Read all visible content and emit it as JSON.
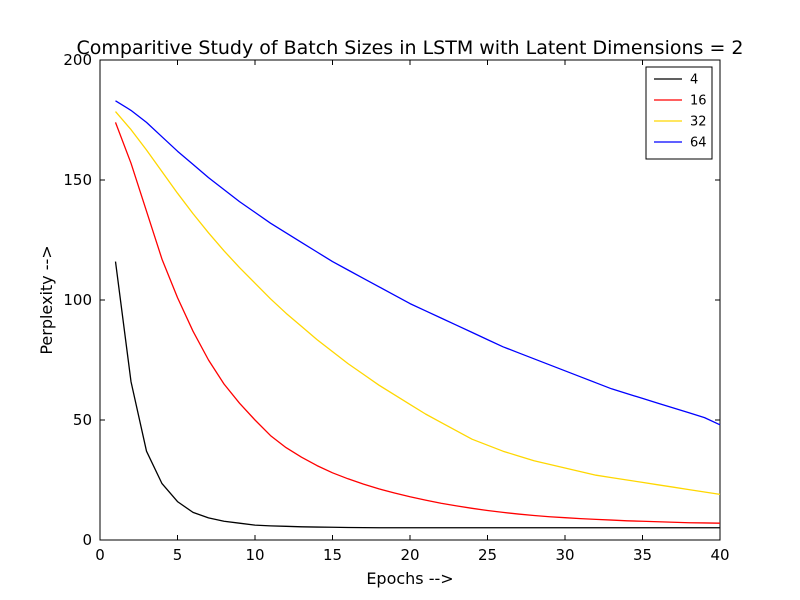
{
  "chart_data": {
    "type": "line",
    "title": "Comparitive Study of Batch Sizes in LSTM with Latent Dimensions = 2",
    "xlabel": "Epochs -->",
    "ylabel": "Perplexity -->",
    "xlim": [
      0,
      40
    ],
    "ylim": [
      0,
      200
    ],
    "xticks": [
      0,
      5,
      10,
      15,
      20,
      25,
      30,
      35,
      40
    ],
    "yticks": [
      0,
      50,
      100,
      150,
      200
    ],
    "grid": false,
    "legend_position": "top-right",
    "x": [
      1,
      2,
      3,
      4,
      5,
      6,
      7,
      8,
      9,
      10,
      11,
      12,
      13,
      14,
      15,
      16,
      17,
      18,
      19,
      20,
      21,
      22,
      23,
      24,
      25,
      26,
      27,
      28,
      29,
      30,
      31,
      32,
      33,
      34,
      35,
      36,
      37,
      38,
      39,
      40
    ],
    "series": [
      {
        "name": "4",
        "color": "#000000",
        "values": [
          116,
          66,
          37,
          23.5,
          16,
          11.5,
          9.2,
          7.8,
          7,
          6.2,
          5.9,
          5.7,
          5.5,
          5.4,
          5.3,
          5.2,
          5.15,
          5.1,
          5.1,
          5.1,
          5.1,
          5.1,
          5.1,
          5.1,
          5.1,
          5.1,
          5.1,
          5.1,
          5.1,
          5.1,
          5.1,
          5.1,
          5.1,
          5.1,
          5.1,
          5.1,
          5.1,
          5.1,
          5.1,
          5.1
        ]
      },
      {
        "name": "16",
        "color": "#ff0000",
        "values": [
          174,
          157,
          137,
          117,
          101,
          87,
          75,
          65,
          57,
          50,
          43.5,
          38.5,
          34.5,
          31,
          28,
          25.5,
          23.3,
          21.3,
          19.6,
          18,
          16.6,
          15.3,
          14.2,
          13.2,
          12.3,
          11.5,
          10.8,
          10.2,
          9.7,
          9.3,
          8.9,
          8.6,
          8.3,
          8.0,
          7.8,
          7.6,
          7.4,
          7.2,
          7.1,
          7.0
        ]
      },
      {
        "name": "32",
        "color": "#ffd700",
        "values": [
          178.5,
          171,
          162.5,
          153.5,
          144.5,
          136,
          128,
          120.5,
          113.5,
          107,
          100.5,
          94.5,
          89,
          83.5,
          78.5,
          73.5,
          69,
          64.5,
          60.5,
          56.5,
          52.5,
          49,
          45.5,
          42,
          39.5,
          37,
          35,
          33,
          31.5,
          30,
          28.5,
          27,
          26,
          25,
          24,
          23,
          22,
          21,
          20,
          19
        ]
      },
      {
        "name": "64",
        "color": "#0000ff",
        "values": [
          183,
          179,
          174,
          168,
          162,
          156.5,
          151,
          146,
          141,
          136.5,
          132,
          128,
          124,
          120,
          116,
          112.5,
          109,
          105.5,
          102,
          98.5,
          95.5,
          92.5,
          89.5,
          86.5,
          83.5,
          80.5,
          78,
          75.5,
          73,
          70.5,
          68,
          65.5,
          63,
          61,
          59,
          57,
          55,
          53,
          51,
          48
        ]
      }
    ]
  }
}
